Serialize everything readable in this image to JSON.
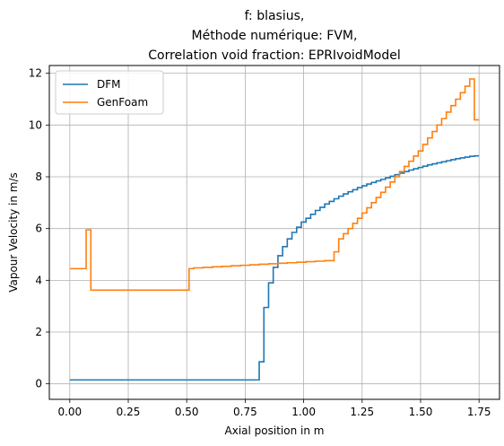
{
  "chart_data": {
    "type": "line",
    "step": true,
    "title_lines": [
      "f: blasius,",
      "Méthode numérique: FVM,",
      "Correlation void fraction: EPRIvoidModel"
    ],
    "xlabel": "Axial position in m",
    "ylabel": "Vapour Velocity in m/s",
    "xlim": [
      -0.0875,
      1.8375
    ],
    "ylim": [
      -0.6,
      12.3
    ],
    "xticks": [
      0.0,
      0.25,
      0.5,
      0.75,
      1.0,
      1.25,
      1.5,
      1.75
    ],
    "xtick_labels": [
      "0.00",
      "0.25",
      "0.50",
      "0.75",
      "1.00",
      "1.25",
      "1.50",
      "1.75"
    ],
    "yticks": [
      0,
      2,
      4,
      6,
      8,
      10,
      12
    ],
    "ytick_labels": [
      "0",
      "2",
      "4",
      "6",
      "8",
      "10",
      "12"
    ],
    "grid": true,
    "legend_position": "top-left",
    "series": [
      {
        "name": "DFM",
        "color": "#1f77b4",
        "x": [
          0.0,
          0.79,
          0.81,
          0.83,
          0.85,
          0.87,
          0.89,
          0.91,
          0.93,
          0.95,
          0.97,
          0.99,
          1.01,
          1.03,
          1.05,
          1.07,
          1.09,
          1.11,
          1.13,
          1.15,
          1.17,
          1.19,
          1.21,
          1.23,
          1.25,
          1.27,
          1.29,
          1.31,
          1.33,
          1.35,
          1.37,
          1.39,
          1.41,
          1.43,
          1.45,
          1.47,
          1.49,
          1.51,
          1.53,
          1.55,
          1.57,
          1.59,
          1.61,
          1.63,
          1.65,
          1.67,
          1.69,
          1.71,
          1.73,
          1.75
        ],
        "y": [
          0.15,
          0.15,
          0.85,
          2.95,
          3.9,
          4.5,
          4.95,
          5.3,
          5.6,
          5.85,
          6.05,
          6.25,
          6.4,
          6.55,
          6.7,
          6.82,
          6.95,
          7.05,
          7.15,
          7.25,
          7.34,
          7.42,
          7.5,
          7.58,
          7.65,
          7.72,
          7.78,
          7.84,
          7.9,
          7.96,
          8.02,
          8.08,
          8.14,
          8.2,
          8.26,
          8.31,
          8.36,
          8.41,
          8.46,
          8.5,
          8.54,
          8.58,
          8.62,
          8.66,
          8.7,
          8.73,
          8.76,
          8.79,
          8.81,
          8.81
        ]
      },
      {
        "name": "GenFoam",
        "color": "#ff7f0e",
        "x": [
          0.0,
          0.07,
          0.09,
          0.51,
          0.53,
          0.57,
          0.61,
          0.65,
          0.69,
          0.73,
          0.77,
          0.81,
          0.85,
          0.89,
          0.93,
          0.97,
          1.01,
          1.05,
          1.09,
          1.13,
          1.15,
          1.17,
          1.19,
          1.21,
          1.23,
          1.25,
          1.27,
          1.29,
          1.31,
          1.33,
          1.35,
          1.37,
          1.39,
          1.41,
          1.43,
          1.45,
          1.47,
          1.49,
          1.51,
          1.53,
          1.55,
          1.57,
          1.59,
          1.61,
          1.63,
          1.65,
          1.67,
          1.69,
          1.71,
          1.73,
          1.75
        ],
        "y": [
          4.45,
          5.95,
          3.62,
          4.45,
          4.48,
          4.5,
          4.52,
          4.54,
          4.56,
          4.58,
          4.6,
          4.62,
          4.64,
          4.66,
          4.68,
          4.7,
          4.72,
          4.74,
          4.76,
          5.1,
          5.6,
          5.8,
          6.0,
          6.2,
          6.4,
          6.6,
          6.8,
          7.0,
          7.2,
          7.4,
          7.6,
          7.8,
          8.0,
          8.2,
          8.4,
          8.6,
          8.8,
          9.0,
          9.25,
          9.5,
          9.75,
          10.0,
          10.25,
          10.5,
          10.75,
          11.0,
          11.25,
          11.5,
          11.78,
          10.2,
          10.2
        ]
      }
    ]
  }
}
